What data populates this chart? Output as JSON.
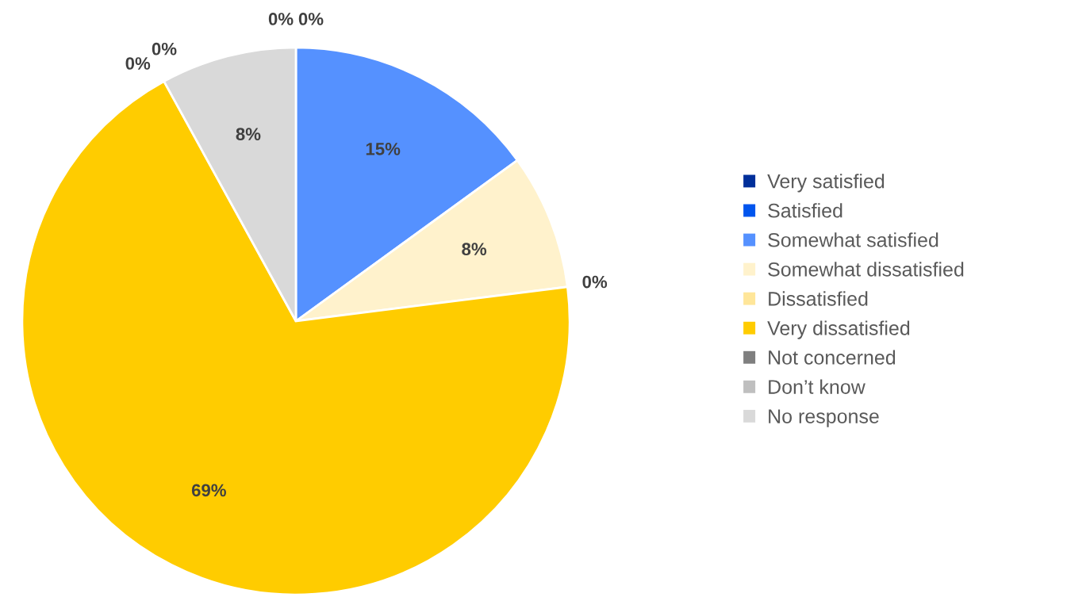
{
  "chart_data": {
    "type": "pie",
    "categories": [
      "Very satisfied",
      "Satisfied",
      "Somewhat satisfied",
      "Somewhat dissatisfied",
      "Dissatisfied",
      "Very dissatisfied",
      "Not concerned",
      "Don’t know",
      "No response"
    ],
    "values": [
      0,
      0,
      15,
      8,
      0,
      69,
      0,
      0,
      8
    ],
    "colors": [
      "#002f9a",
      "#0055ee",
      "#5591ff",
      "#fff2cc",
      "#ffe699",
      "#ffcc00",
      "#7f7f7f",
      "#bfbfbf",
      "#d9d9d9"
    ],
    "value_labels": [
      "0%",
      "0%",
      "15%",
      "8%",
      "0%",
      "69%",
      "0%",
      "0%",
      "8%"
    ],
    "legend": "right"
  }
}
